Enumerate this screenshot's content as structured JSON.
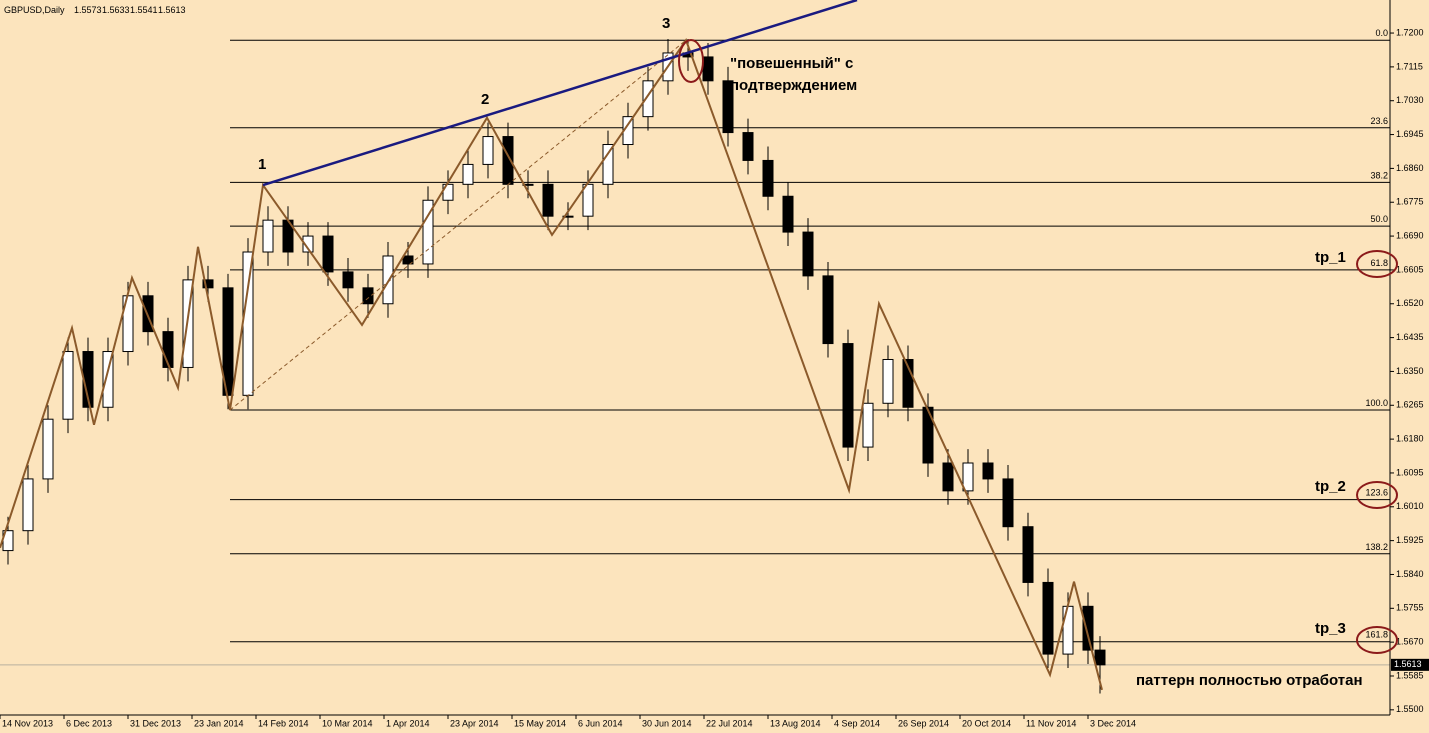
{
  "chart_data": {
    "type": "candlestick",
    "title": "GBPUSD,Daily",
    "header_values": [
      1.5573,
      1.5633,
      1.5541,
      1.5613
    ],
    "background": "#fce4bd",
    "bull_color": "#ffffff",
    "bear_color": "#000000",
    "x": [
      2,
      7,
      12,
      17,
      22,
      27,
      32,
      37,
      42,
      47,
      52,
      57,
      62,
      67,
      72,
      77,
      82,
      87,
      92,
      97,
      102,
      107,
      112,
      117,
      122,
      127,
      132,
      137,
      142,
      147,
      152,
      157,
      162,
      167,
      172,
      177,
      182,
      187,
      192,
      197,
      202,
      207,
      212,
      217,
      222,
      227,
      232,
      237,
      242,
      247,
      252,
      257,
      262,
      267,
      272,
      275
    ],
    "open": [
      1.59,
      1.595,
      1.608,
      1.623,
      1.64,
      1.626,
      1.64,
      1.654,
      1.645,
      1.636,
      1.658,
      1.656,
      1.629,
      1.665,
      1.673,
      1.665,
      1.669,
      1.66,
      1.656,
      1.652,
      1.664,
      1.662,
      1.678,
      1.682,
      1.687,
      1.694,
      1.682,
      1.682,
      1.674,
      1.674,
      1.682,
      1.692,
      1.699,
      1.708,
      1.715,
      1.714,
      1.708,
      1.695,
      1.688,
      1.679,
      1.67,
      1.659,
      1.642,
      1.616,
      1.627,
      1.638,
      1.626,
      1.612,
      1.605,
      1.612,
      1.608,
      1.596,
      1.582,
      1.564,
      1.576,
      1.565
    ],
    "high": [
      1.5985,
      1.6115,
      1.6265,
      1.6435,
      1.6435,
      1.6435,
      1.6575,
      1.6575,
      1.6485,
      1.6615,
      1.6615,
      1.6595,
      1.6685,
      1.6765,
      1.6765,
      1.6725,
      1.6725,
      1.6635,
      1.6595,
      1.6675,
      1.6675,
      1.6815,
      1.6855,
      1.6905,
      1.6975,
      1.6975,
      1.6855,
      1.6855,
      1.6775,
      1.6855,
      1.6955,
      1.7025,
      1.7115,
      1.7185,
      1.7185,
      1.7175,
      1.7115,
      1.6985,
      1.6915,
      1.6825,
      1.6735,
      1.6625,
      1.6455,
      1.6305,
      1.6415,
      1.6415,
      1.6295,
      1.6155,
      1.6155,
      1.6155,
      1.6115,
      1.5995,
      1.5855,
      1.5795,
      1.5795,
      1.5685
    ],
    "low": [
      1.5865,
      1.5915,
      1.6045,
      1.6195,
      1.6225,
      1.6225,
      1.6365,
      1.6415,
      1.6325,
      1.6325,
      1.6525,
      1.6255,
      1.6255,
      1.6615,
      1.6615,
      1.6615,
      1.6565,
      1.6525,
      1.6485,
      1.6485,
      1.6585,
      1.6585,
      1.6745,
      1.6785,
      1.6835,
      1.6785,
      1.6785,
      1.6705,
      1.6705,
      1.6705,
      1.6785,
      1.6885,
      1.6955,
      1.7045,
      1.7105,
      1.7045,
      1.6915,
      1.6845,
      1.6755,
      1.6665,
      1.6555,
      1.6385,
      1.6125,
      1.6125,
      1.6235,
      1.6225,
      1.6085,
      1.6015,
      1.6015,
      1.6045,
      1.5925,
      1.5785,
      1.5605,
      1.5605,
      1.5615,
      1.5541
    ],
    "close": [
      1.595,
      1.608,
      1.623,
      1.64,
      1.626,
      1.64,
      1.654,
      1.645,
      1.636,
      1.658,
      1.656,
      1.629,
      1.665,
      1.673,
      1.665,
      1.669,
      1.66,
      1.656,
      1.652,
      1.664,
      1.662,
      1.678,
      1.682,
      1.687,
      1.694,
      1.682,
      1.682,
      1.674,
      1.674,
      1.682,
      1.692,
      1.699,
      1.708,
      1.715,
      1.714,
      1.708,
      1.695,
      1.688,
      1.679,
      1.67,
      1.659,
      1.642,
      1.616,
      1.627,
      1.638,
      1.626,
      1.612,
      1.605,
      1.612,
      1.608,
      1.596,
      1.582,
      1.564,
      1.576,
      1.565,
      1.5613
    ],
    "xlim": [
      0,
      347.5
    ],
    "xticks": [
      {
        "value": 0,
        "label": "14 Nov 2013"
      },
      {
        "value": 16,
        "label": "6 Dec 2013"
      },
      {
        "value": 32,
        "label": "31 Dec 2013"
      },
      {
        "value": 48,
        "label": "23 Jan 2014"
      },
      {
        "value": 64,
        "label": "14 Feb 2014"
      },
      {
        "value": 80,
        "label": "10 Mar 2014"
      },
      {
        "value": 96,
        "label": "1 Apr 2014"
      },
      {
        "value": 112,
        "label": "23 Apr 2014"
      },
      {
        "value": 128,
        "label": "15 May 2014"
      },
      {
        "value": 144,
        "label": "6 Jun 2014"
      },
      {
        "value": 160,
        "label": "30 Jun 2014"
      },
      {
        "value": 176,
        "label": "22 Jul 2014"
      },
      {
        "value": 192,
        "label": "13 Aug 2014"
      },
      {
        "value": 208,
        "label": "4 Sep 2014"
      },
      {
        "value": 224,
        "label": "26 Sep 2014"
      },
      {
        "value": 240,
        "label": "20 Oct 2014"
      },
      {
        "value": 256,
        "label": "11 Nov 2014"
      },
      {
        "value": 272,
        "label": "3 Dec 2014"
      }
    ],
    "ylim": [
      1.5487,
      1.7283
    ],
    "yticks": [
      {
        "value": 1.72,
        "label": "1.7200"
      },
      1.7115,
      {
        "value": 1.703,
        "label": "1.7030"
      },
      1.6945,
      {
        "value": 1.686,
        "label": "1.6860"
      },
      1.6775,
      {
        "value": 1.669,
        "label": "1.6690"
      },
      1.6605,
      {
        "value": 1.652,
        "label": "1.6520"
      },
      1.6435,
      {
        "value": 1.635,
        "label": "1.6350"
      },
      1.6265,
      {
        "value": 1.618,
        "label": "1.6180"
      },
      1.6095,
      {
        "value": 1.601,
        "label": "1.6010"
      },
      1.5925,
      {
        "value": 1.584,
        "label": "1.5840"
      },
      1.5755,
      {
        "value": 1.567,
        "label": "1.5670"
      },
      1.5585,
      {
        "value": 1.55,
        "label": "1.5500"
      }
    ],
    "fib_levels": [
      {
        "label": "0.0",
        "value": 1.7182
      },
      {
        "label": "23.6",
        "value": 1.6962
      },
      {
        "label": "38.2",
        "value": 1.6825
      },
      {
        "label": "50.0",
        "value": 1.6715
      },
      {
        "label": "61.8",
        "value": 1.6605
      },
      {
        "label": "100.0",
        "value": 1.6253
      },
      {
        "label": "123.6",
        "value": 1.6028
      },
      {
        "label": "138.2",
        "value": 1.5892
      },
      {
        "label": "161.8",
        "value": 1.5671
      }
    ],
    "zigzag": {
      "color": "#8b5a2b",
      "x": [
        0,
        18,
        23.5,
        33,
        44.5,
        49.5,
        57.5,
        65.75,
        90.5,
        121.75,
        138,
        171.5,
        212.25,
        219.75,
        262.5,
        268.5,
        275.5
      ],
      "values": [
        1.5907,
        1.6459,
        1.6216,
        1.6585,
        1.6309,
        1.6663,
        1.6253,
        1.6818,
        1.6467,
        1.6987,
        1.6693,
        1.7182,
        1.6052,
        1.652,
        1.5588,
        1.5822,
        1.555
      ]
    },
    "trendline": {
      "color": "#1a1a80",
      "x": [
        65.75,
        214.25
      ],
      "values": [
        1.6818,
        1.7283
      ]
    },
    "dashed_line": {
      "color": "#8b5a2b",
      "x": [
        57.5,
        171.5
      ],
      "values": [
        1.6253,
        1.7182
      ]
    },
    "last_price": 1.5613,
    "annotations": {
      "wave_1": "1",
      "wave_2": "2",
      "wave_3": "3",
      "hanging_1": "\"повешенный\" с",
      "hanging_2": "подтверждением",
      "tp_1": "tp_1",
      "tp_2": "tp_2",
      "tp_3": "tp_3",
      "done": "паттерн полностью отработан"
    }
  }
}
